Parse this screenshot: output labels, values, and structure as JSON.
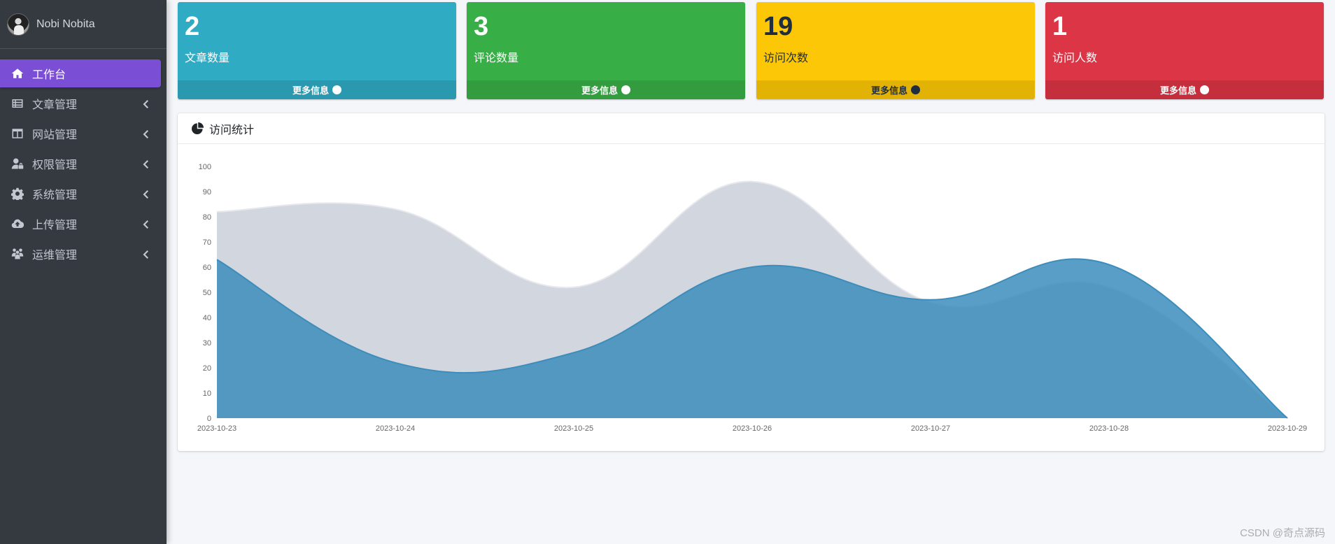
{
  "sidebar": {
    "user_name": "Nobi Nobita",
    "items": [
      {
        "label": "工作台",
        "icon": "home-icon",
        "active": true
      },
      {
        "label": "文章管理",
        "icon": "list-icon"
      },
      {
        "label": "网站管理",
        "icon": "window-icon"
      },
      {
        "label": "权限管理",
        "icon": "user-lock-icon"
      },
      {
        "label": "系统管理",
        "icon": "gear-icon"
      },
      {
        "label": "上传管理",
        "icon": "cloud-upload-icon"
      },
      {
        "label": "运维管理",
        "icon": "people-icon"
      }
    ]
  },
  "stats": [
    {
      "value": "2",
      "label": "文章数量",
      "more": "更多信息",
      "color": "#2fabc4"
    },
    {
      "value": "3",
      "label": "评论数量",
      "more": "更多信息",
      "color": "#38ae47"
    },
    {
      "value": "19",
      "label": "访问次数",
      "more": "更多信息",
      "color": "#fcc706"
    },
    {
      "value": "1",
      "label": "访问人数",
      "more": "更多信息",
      "color": "#dc3545"
    }
  ],
  "chart_card": {
    "title": "访问统计",
    "icon": "chart-pie-icon"
  },
  "chart_data": {
    "type": "area",
    "x": [
      "2023-10-23",
      "2023-10-24",
      "2023-10-25",
      "2023-10-26",
      "2023-10-27",
      "2023-10-28",
      "2023-10-29"
    ],
    "ylim": [
      0,
      100
    ],
    "yticks": [
      0,
      10,
      20,
      30,
      40,
      50,
      60,
      70,
      80,
      90,
      100
    ],
    "series": [
      {
        "values": [
          82,
          83,
          52,
          94,
          46,
          52,
          0
        ],
        "color": "#d2d6de"
      },
      {
        "values": [
          63,
          22,
          26,
          60,
          47,
          61,
          0
        ],
        "color": "#3c8dbc"
      }
    ]
  },
  "watermark": "CSDN @奇点源码"
}
